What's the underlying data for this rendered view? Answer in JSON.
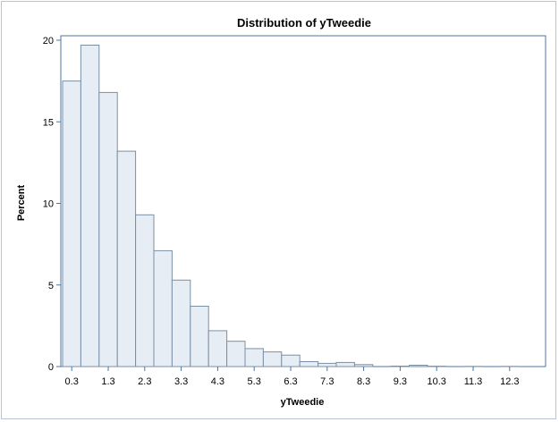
{
  "chart_data": {
    "type": "bar",
    "title": "Distribution of yTweedie",
    "xlabel": "yTweedie",
    "ylabel": "Percent",
    "bin_width": 0.5,
    "x_start": 0.05,
    "ylim": [
      0,
      20
    ],
    "yticks": [
      0,
      5,
      10,
      15,
      20
    ],
    "xticks": [
      0.3,
      1.3,
      2.3,
      3.3,
      4.3,
      5.3,
      6.3,
      7.3,
      8.3,
      9.3,
      10.3,
      11.3,
      12.3
    ],
    "xtick_labels": [
      "0.3",
      "1.3",
      "2.3",
      "3.3",
      "4.3",
      "5.3",
      "6.3",
      "7.3",
      "8.3",
      "9.3",
      "10.3",
      "11.3",
      "12.3"
    ],
    "bin_centers": [
      0.3,
      0.8,
      1.3,
      1.8,
      2.3,
      2.8,
      3.3,
      3.8,
      4.3,
      4.8,
      5.3,
      5.8,
      6.3,
      6.8,
      7.3,
      7.8,
      8.3,
      8.8,
      9.3,
      9.8,
      10.3,
      10.8,
      11.3,
      11.8,
      12.3
    ],
    "values": [
      17.5,
      19.7,
      16.8,
      13.2,
      9.3,
      7.1,
      5.3,
      3.7,
      2.2,
      1.55,
      1.1,
      0.9,
      0.7,
      0.3,
      0.2,
      0.25,
      0.12,
      0.0,
      0.03,
      0.08,
      0.02,
      0.0,
      0.01,
      0.0,
      0.01
    ],
    "grid": false,
    "colors": {
      "bar_fill": "#e6edf5",
      "bar_stroke": "#7b8fa6",
      "axis": "#4d74a8",
      "frame": "#b9c4d0"
    }
  }
}
